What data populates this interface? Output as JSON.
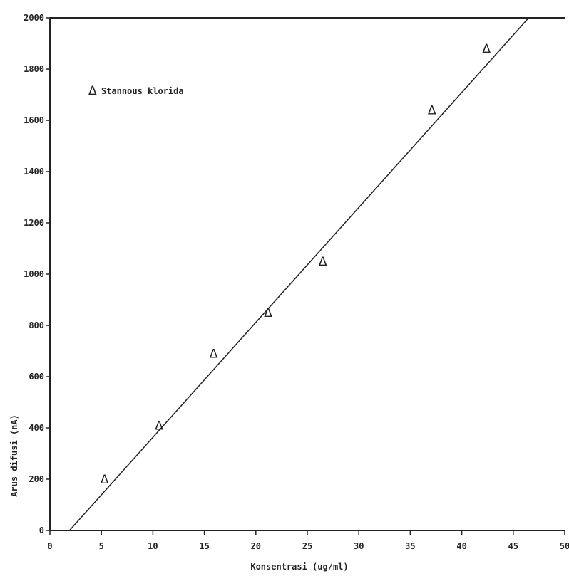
{
  "chart_data": {
    "type": "scatter",
    "title": "",
    "xlabel": "Konsentrasi (ug/ml)",
    "ylabel": "Arus difusi (nA)",
    "xlim": [
      0,
      50
    ],
    "ylim": [
      0,
      2000
    ],
    "x_ticks": [
      "0",
      "5",
      "10",
      "15",
      "20",
      "25",
      "30",
      "35",
      "40",
      "45",
      "50"
    ],
    "y_ticks": [
      "0",
      "200",
      "400",
      "600",
      "800",
      "1000",
      "1200",
      "1400",
      "1600",
      "1800",
      "2000"
    ],
    "legend": {
      "marker": "Δ",
      "label": "Stannous klorida",
      "position": "top-left"
    },
    "series": [
      {
        "name": "Stannous klorida",
        "marker": "Δ",
        "x": [
          5.3,
          10.6,
          15.9,
          21.2,
          26.5,
          37.1,
          42.4
        ],
        "y": [
          200,
          410,
          690,
          850,
          1050,
          1640,
          1880
        ]
      }
    ],
    "fit_line": {
      "x": [
        1.9,
        46.5
      ],
      "y": [
        0,
        2000
      ]
    },
    "grid": false
  }
}
